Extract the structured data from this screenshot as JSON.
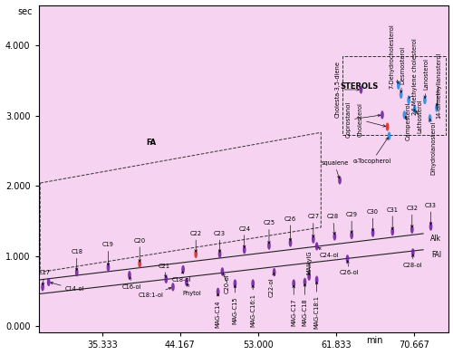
{
  "chart_data": {
    "type": "scatter",
    "x_label": "min",
    "y_label": "sec",
    "xlim": [
      28.1,
      74.6
    ],
    "ylim": [
      -0.08,
      4.57
    ],
    "xticks": [
      35.333,
      44.167,
      {
        "value": 53,
        "label": "53.000"
      },
      61.833,
      70.667
    ],
    "yticks": [
      {
        "value": 0,
        "label": "0.000"
      },
      {
        "value": 1,
        "label": "1.000"
      },
      {
        "value": 2,
        "label": "2.000"
      },
      {
        "value": 3,
        "label": "3.000"
      },
      {
        "value": 4,
        "label": "4.000"
      }
    ],
    "regions": [
      {
        "name": "FA",
        "corners": [
          [
            28.28,
            2.04
          ],
          [
            60.14,
            2.76
          ],
          [
            60.14,
            1.41
          ],
          [
            28.28,
            0.77
          ]
        ],
        "tx": 40.84,
        "ty": 2.61
      },
      {
        "name": "STEROLS",
        "corners": [
          [
            62.55,
            2.73
          ],
          [
            74.33,
            2.73
          ],
          [
            74.33,
            3.85
          ],
          [
            62.55,
            3.85
          ]
        ],
        "tx": 64.49,
        "ty": 3.41
      }
    ],
    "lines": [
      {
        "name": "Alk",
        "x": [
          28.09,
          71.73
        ],
        "y": [
          0.66,
          1.32
        ],
        "tx": 73.18,
        "ty": 1.25
      },
      {
        "name": "FAl",
        "x": [
          28.09,
          71.73
        ],
        "y": [
          0.46,
          1.09
        ],
        "tx": 73.27,
        "ty": 1.02
      }
    ],
    "peaks": [
      {
        "label": "C17",
        "x": 28.57,
        "y": 0.56,
        "tx": 28.77,
        "ty": 0.76,
        "color": "#6a1b9a"
      },
      {
        "label": "C18",
        "x": 32.44,
        "y": 0.77,
        "tx": 32.44,
        "ty": 1.06,
        "color": "#6a1b9a"
      },
      {
        "label": "C19",
        "x": 36.01,
        "y": 0.84,
        "tx": 36.01,
        "ty": 1.16,
        "color": "#6a1b9a"
      },
      {
        "label": "C20",
        "x": 39.58,
        "y": 0.89,
        "tx": 39.58,
        "ty": 1.22,
        "color": "#e0201b"
      },
      {
        "label": "C21",
        "x": 42.57,
        "y": 0.67,
        "tx": 42.38,
        "ty": 0.86,
        "color": "#6a1b9a"
      },
      {
        "label": "C22",
        "x": 45.95,
        "y": 1.03,
        "tx": 45.95,
        "ty": 1.32,
        "color": "#e0201b"
      },
      {
        "label": "C23",
        "x": 48.66,
        "y": 1.03,
        "tx": 48.66,
        "ty": 1.32,
        "color": "#6a1b9a"
      },
      {
        "label": "C24",
        "x": 51.45,
        "y": 1.09,
        "tx": 51.45,
        "ty": 1.39,
        "color": "#6a1b9a"
      },
      {
        "label": "C25",
        "x": 54.25,
        "y": 1.15,
        "tx": 54.25,
        "ty": 1.47,
        "color": "#6a1b9a"
      },
      {
        "label": "C26",
        "x": 56.67,
        "y": 1.19,
        "tx": 56.67,
        "ty": 1.53,
        "color": "#6a1b9a"
      },
      {
        "label": "C27",
        "x": 59.27,
        "y": 1.24,
        "tx": 59.27,
        "ty": 1.56,
        "color": "#6a1b9a"
      },
      {
        "label": "C28",
        "x": 61.69,
        "y": 1.28,
        "tx": 61.5,
        "ty": 1.56,
        "color": "#6a1b9a"
      },
      {
        "label": "C29",
        "x": 63.62,
        "y": 1.3,
        "tx": 63.62,
        "ty": 1.59,
        "color": "#6a1b9a"
      },
      {
        "label": "C30",
        "x": 66.03,
        "y": 1.33,
        "tx": 66.03,
        "ty": 1.63,
        "color": "#6a1b9a"
      },
      {
        "label": "C31",
        "x": 68.25,
        "y": 1.35,
        "tx": 68.25,
        "ty": 1.66,
        "color": "#6a1b9a"
      },
      {
        "label": "C32",
        "x": 70.47,
        "y": 1.38,
        "tx": 70.47,
        "ty": 1.68,
        "color": "#6a1b9a"
      },
      {
        "label": "C33",
        "x": 72.6,
        "y": 1.42,
        "tx": 72.6,
        "ty": 1.72,
        "color": "#6a1b9a"
      },
      {
        "label": "C14-ol",
        "x": 29.25,
        "y": 0.63,
        "tx": 32.15,
        "ty": 0.53,
        "color": "#6a1b9a"
      },
      {
        "label": "C16-ol",
        "x": 38.42,
        "y": 0.73,
        "tx": 38.71,
        "ty": 0.56,
        "color": "#6a1b9a"
      },
      {
        "label": "C18-ol",
        "x": 44.5,
        "y": 0.81,
        "tx": 44.31,
        "ty": 0.66,
        "color": "#6a1b9a"
      },
      {
        "label": "C18:1-ol",
        "x": 43.35,
        "y": 0.56,
        "tx": 40.84,
        "ty": 0.44,
        "color": "#6a1b9a"
      },
      {
        "label": "Phytol",
        "x": 44.89,
        "y": 0.63,
        "tx": 45.47,
        "ty": 0.47,
        "color": "#6a1b9a"
      },
      {
        "label": "C20-ol",
        "x": 48.95,
        "y": 0.78,
        "tx": 49.52,
        "ty": 0.61,
        "color": "#6a1b9a",
        "vertical": true
      },
      {
        "label": "C22-ol",
        "x": 54.83,
        "y": 0.77,
        "tx": 54.54,
        "ty": 0.56,
        "color": "#6a1b9a",
        "vertical": true
      },
      {
        "label": "C24-ol",
        "x": 59.66,
        "y": 1.14,
        "tx": 61.11,
        "ty": 1.01,
        "color": "#6a1b9a"
      },
      {
        "label": "C26-ol",
        "x": 63.14,
        "y": 0.96,
        "tx": 63.33,
        "ty": 0.76,
        "color": "#6a1b9a"
      },
      {
        "label": "C28-ol",
        "x": 70.57,
        "y": 1.05,
        "tx": 70.57,
        "ty": 0.87,
        "color": "#6a1b9a"
      },
      {
        "label": "MAG-C14",
        "x": 48.46,
        "y": 0.49,
        "tx": 48.46,
        "ty": 0.18,
        "color": "#6a1b9a",
        "vertical": true
      },
      {
        "label": "MAG-C15",
        "x": 50.39,
        "y": 0.61,
        "tx": 50.39,
        "ty": 0.23,
        "color": "#6a1b9a",
        "vertical": true
      },
      {
        "label": "MAG-C16:1",
        "x": 52.42,
        "y": 0.61,
        "tx": 52.42,
        "ty": 0.23,
        "color": "#6a1b9a",
        "vertical": true
      },
      {
        "label": "MAG-C17",
        "x": 57.05,
        "y": 0.61,
        "tx": 57.05,
        "ty": 0.2,
        "color": "#6a1b9a",
        "vertical": true
      },
      {
        "label": "MAG-C18",
        "x": 58.31,
        "y": 0.63,
        "tx": 58.31,
        "ty": 0.2,
        "color": "#6a1b9a",
        "vertical": true
      },
      {
        "label": "MAG-C18:1",
        "x": 59.66,
        "y": 0.66,
        "tx": 59.66,
        "ty": 0.2,
        "color": "#6a1b9a",
        "vertical": true
      },
      {
        "label": "MAlkylG",
        "x": 58.79,
        "y": 0.71,
        "tx": 58.79,
        "ty": 0.91,
        "color": "#6a1b9a",
        "vertical": true
      },
      {
        "label": "squalene",
        "x": 62.27,
        "y": 2.08,
        "tx": 61.69,
        "ty": 2.32,
        "color": "#6a1b9a"
      },
      {
        "label": "α-Tocopherol",
        "x": 67.87,
        "y": 2.71,
        "tx": 65.94,
        "ty": 2.35,
        "color": "#1e88e5"
      },
      {
        "label": "Cholesta-3,5-diene",
        "x": 64.68,
        "y": 3.37,
        "tx": 62.07,
        "ty": 3.37,
        "color": "#6a1b9a",
        "vertical": true
      },
      {
        "label": "Coprostanol",
        "x": 67.09,
        "y": 3.01,
        "tx": 63.23,
        "ty": 2.94,
        "color": "#6a1b9a",
        "vertical": true
      },
      {
        "label": "Cholesterol",
        "x": 67.67,
        "y": 2.84,
        "tx": 64.58,
        "ty": 2.94,
        "color": "#e0201b",
        "vertical": true
      },
      {
        "label": "7-Dehydrocholesterol",
        "x": 68.93,
        "y": 3.43,
        "tx": 68.16,
        "ty": 3.85,
        "color": "#1e88e5",
        "vertical": true
      },
      {
        "label": "Desmosterol",
        "x": 69.22,
        "y": 3.3,
        "tx": 69.41,
        "ty": 3.72,
        "color": "#1e88e5",
        "vertical": true
      },
      {
        "label": "24-Methylene cholesterol",
        "x": 70.09,
        "y": 3.22,
        "tx": 70.76,
        "ty": 3.56,
        "color": "#1e88e5",
        "vertical": true
      },
      {
        "label": "Lanosterol",
        "x": 71.92,
        "y": 3.22,
        "tx": 72.11,
        "ty": 3.59,
        "color": "#1e88e5",
        "vertical": true
      },
      {
        "label": "14-dimethyllanosterol",
        "x": 73.27,
        "y": 3.11,
        "tx": 73.47,
        "ty": 3.43,
        "color": "#1e88e5",
        "vertical": true
      },
      {
        "label": "Campesterol",
        "x": 69.6,
        "y": 3.01,
        "tx": 69.99,
        "ty": 2.92,
        "color": "#1e88e5",
        "vertical": true
      },
      {
        "label": "Lathosterol",
        "x": 70.76,
        "y": 3.09,
        "tx": 71.34,
        "ty": 2.99,
        "color": "#1e88e5",
        "vertical": true
      },
      {
        "label": "Dihydrolanosterol",
        "x": 72.5,
        "y": 2.96,
        "tx": 72.89,
        "ty": 2.54,
        "color": "#1e88e5",
        "vertical": true
      }
    ]
  }
}
